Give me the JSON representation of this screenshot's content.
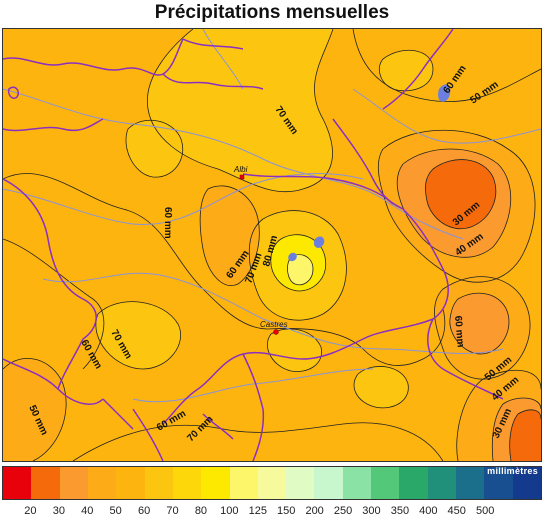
{
  "title": "Précipitations mensuelles",
  "legend": {
    "unit": "millimètres",
    "ticks": [
      "20",
      "30",
      "40",
      "50",
      "60",
      "70",
      "80",
      "100",
      "125",
      "150",
      "200",
      "250",
      "300",
      "350",
      "400",
      "450",
      "500"
    ],
    "colors": [
      "#e8000b",
      "#f56a0a",
      "#fb9a2e",
      "#fdab16",
      "#fdb40f",
      "#fcc510",
      "#fdd70a",
      "#fde900",
      "#fdf66a",
      "#f6fa9c",
      "#e1fbc4",
      "#c8f7cd",
      "#8be2a5",
      "#53c879",
      "#2aa86a",
      "#20907a",
      "#1b6f8a",
      "#174f91",
      "#143a8d"
    ]
  },
  "cities": [
    {
      "name": "Albi"
    },
    {
      "name": "Castres"
    }
  ],
  "contour_labels": [
    "70 mm",
    "60 mm",
    "50 mm",
    "60 mm",
    "60 mm",
    "70 mm",
    "80 mm",
    "30 mm",
    "40 mm",
    "60 mm",
    "50 mm",
    "40 mm",
    "30 mm",
    "70 mm",
    "60 mm",
    "50 mm",
    "60 mm",
    "70 mm"
  ]
}
